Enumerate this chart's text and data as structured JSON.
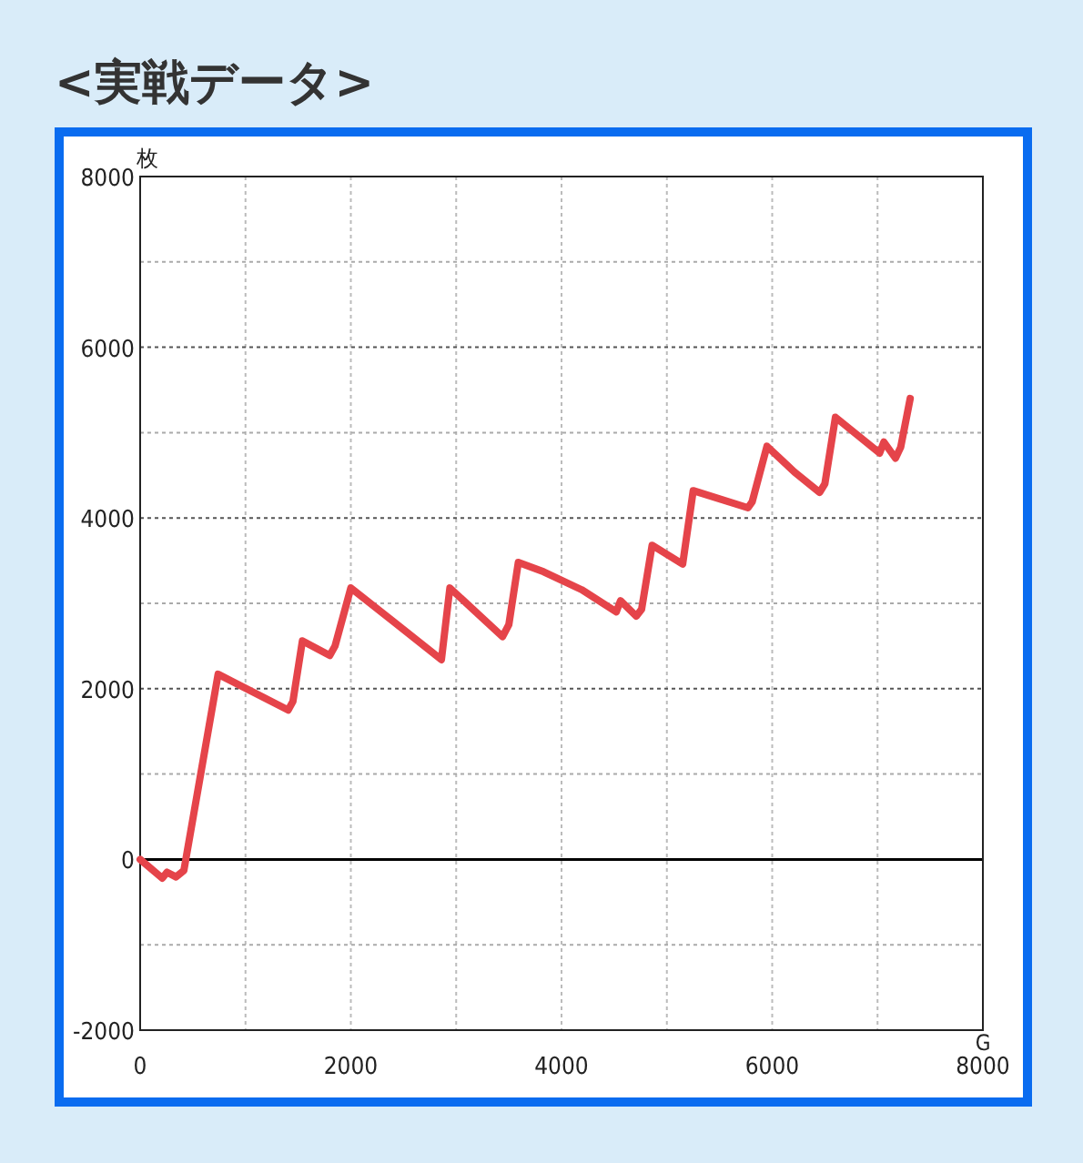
{
  "chart_data": {
    "type": "line",
    "title": "<実戦データ>",
    "ylabel": "枚",
    "xlabel": "G",
    "series": [
      {
        "color": "#e5444a",
        "x": [
          0,
          210,
          255,
          340,
          415,
          740,
          1405,
          1450,
          1540,
          1800,
          1850,
          2000,
          2400,
          2860,
          2940,
          3440,
          3500,
          3590,
          3830,
          4190,
          4520,
          4560,
          4710,
          4760,
          4860,
          5150,
          5250,
          5770,
          5810,
          5950,
          6210,
          6450,
          6500,
          6600,
          7020,
          7060,
          7170,
          7220,
          7310
        ],
        "values": [
          0,
          -220,
          -150,
          -205,
          -130,
          2170,
          1750,
          1850,
          2560,
          2390,
          2500,
          3180,
          2790,
          2340,
          3180,
          2610,
          2750,
          3480,
          3370,
          3160,
          2900,
          3030,
          2850,
          2930,
          3680,
          3460,
          4320,
          4120,
          4190,
          4840,
          4540,
          4300,
          4400,
          5180,
          4760,
          4890,
          4700,
          4830,
          5400
        ]
      }
    ],
    "xlim": [
      0,
      8000
    ],
    "ylim": [
      -2000,
      8000
    ],
    "xticks": [
      0,
      {
        "value": 1000,
        "label": null
      },
      2000,
      {
        "value": 3000,
        "label": null
      },
      4000,
      {
        "value": 5000,
        "label": null
      },
      6000,
      {
        "value": 7000,
        "label": null
      },
      8000
    ],
    "yticks": [
      -2000,
      {
        "value": -1000,
        "label": null
      },
      0,
      {
        "value": 1000,
        "label": null
      },
      2000,
      {
        "value": 3000,
        "label": null
      },
      4000,
      {
        "value": 5000,
        "label": null
      },
      6000,
      {
        "value": 7000,
        "label": null
      },
      8000
    ],
    "ref_lines": [
      {
        "axis": "y",
        "value": 0,
        "color": "#000000"
      }
    ],
    "grid": true,
    "marker": "none",
    "line_style": "solid"
  }
}
